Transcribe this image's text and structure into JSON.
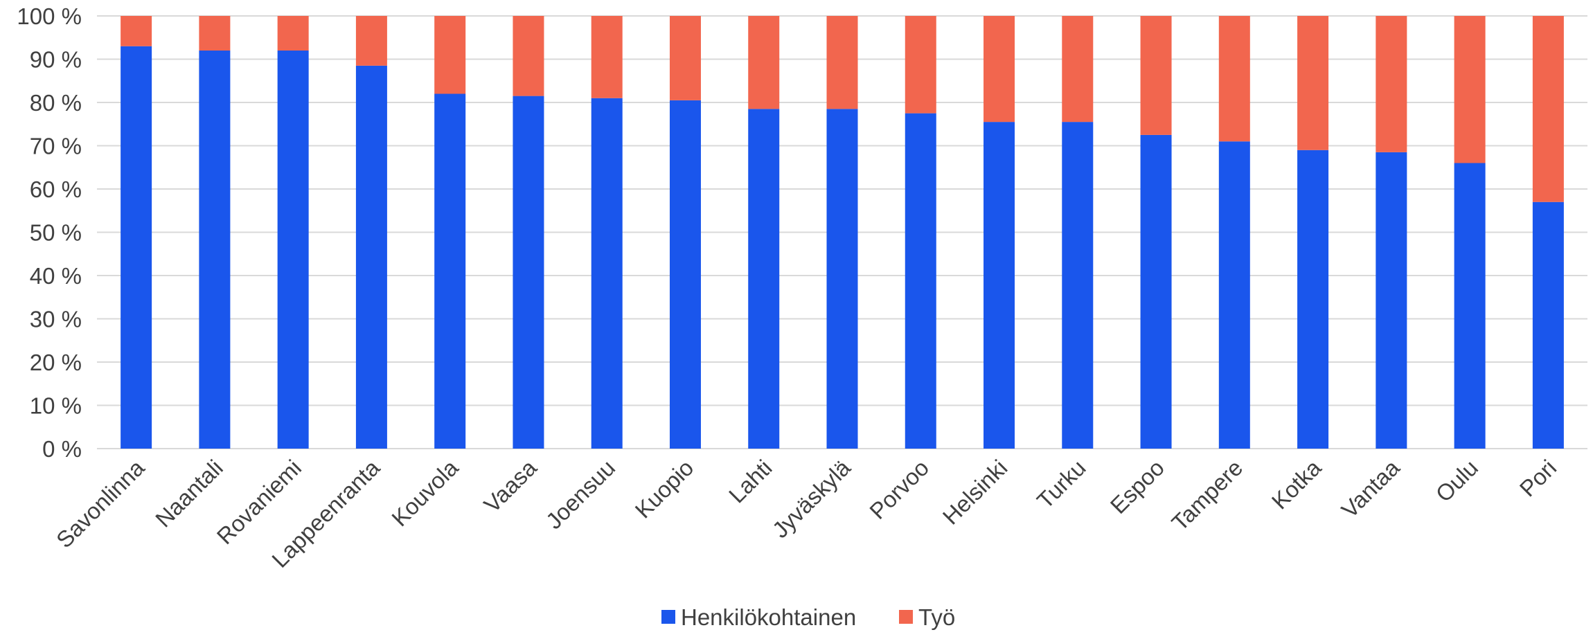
{
  "chart_data": {
    "type": "bar",
    "stacked": true,
    "title": "",
    "xlabel": "",
    "ylabel": "",
    "ylim": [
      0,
      100
    ],
    "yticks": [
      0,
      10,
      20,
      30,
      40,
      50,
      60,
      70,
      80,
      90,
      100
    ],
    "ytick_labels": [
      "0 %",
      "10 %",
      "20 %",
      "30 %",
      "40 %",
      "50 %",
      "60 %",
      "70 %",
      "80 %",
      "90 %",
      "100 %"
    ],
    "grid": true,
    "legend_position": "bottom",
    "categories": [
      "Savonlinna",
      "Naantali",
      "Rovaniemi",
      "Lappeenranta",
      "Kouvola",
      "Vaasa",
      "Joensuu",
      "Kuopio",
      "Lahti",
      "Jyväskylä",
      "Porvoo",
      "Helsinki",
      "Turku",
      "Espoo",
      "Tampere",
      "Kotka",
      "Vantaa",
      "Oulu",
      "Pori"
    ],
    "series": [
      {
        "name": "Henkilökohtainen",
        "color": "#1a56ec",
        "values": [
          93,
          92,
          92,
          88.5,
          82,
          81.5,
          81,
          80.5,
          78.5,
          78.5,
          77.5,
          75.5,
          75.5,
          72.5,
          71,
          69,
          68.5,
          66,
          57
        ]
      },
      {
        "name": "Työ",
        "color": "#f2664e",
        "values": [
          7,
          8,
          8,
          11.5,
          18,
          18.5,
          19,
          19.5,
          21.5,
          21.5,
          22.5,
          24.5,
          24.5,
          27.5,
          29,
          31,
          31.5,
          34,
          43
        ]
      }
    ]
  }
}
